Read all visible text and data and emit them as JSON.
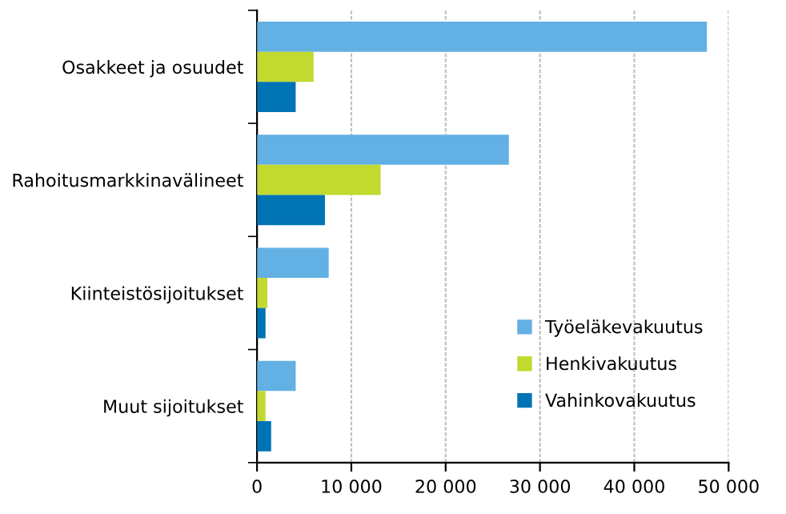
{
  "chart_data": {
    "type": "bar",
    "orientation": "horizontal",
    "categories": [
      "Osakkeet ja osuudet",
      "Rahoitusmarkkinavälineet",
      "Kiinteistösijoitukset",
      "Muut sijoitukset"
    ],
    "series": [
      {
        "name": "Työeläkevakuutus",
        "color": "#62b0e4",
        "values": [
          47700,
          26700,
          7600,
          4100
        ]
      },
      {
        "name": "Henkivakuutus",
        "color": "#c2d92f",
        "values": [
          6000,
          13100,
          1100,
          900
        ]
      },
      {
        "name": "Vahinkovakuutus",
        "color": "#0073b4",
        "values": [
          4100,
          7200,
          900,
          1500
        ]
      }
    ],
    "xlim": [
      0,
      50000
    ],
    "xticks": [
      {
        "value": 0,
        "label": "0"
      },
      {
        "value": 10000,
        "label": "10 000"
      },
      {
        "value": 20000,
        "label": "20 000"
      },
      {
        "value": 30000,
        "label": "30 000"
      },
      {
        "value": 40000,
        "label": "40 000"
      },
      {
        "value": 50000,
        "label": "50 000"
      }
    ],
    "grid": "x",
    "legend": "bottom right"
  }
}
